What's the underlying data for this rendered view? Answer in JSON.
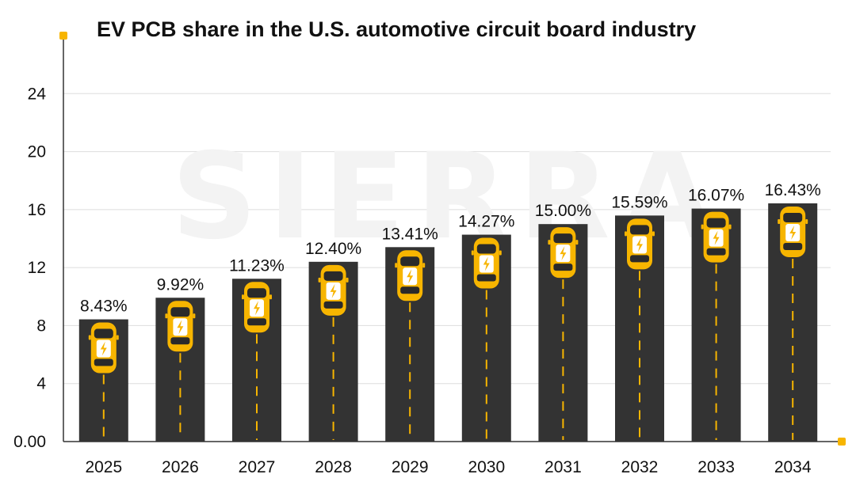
{
  "chart_data": {
    "type": "bar",
    "title": "EV PCB share in the U.S. automotive circuit board industry",
    "xlabel": "",
    "ylabel": "",
    "categories": [
      "2025",
      "2026",
      "2027",
      "2028",
      "2029",
      "2030",
      "2031",
      "2032",
      "2033",
      "2034"
    ],
    "values": [
      8.43,
      9.92,
      11.23,
      12.4,
      13.41,
      14.27,
      15.0,
      15.59,
      16.07,
      16.43
    ],
    "data_labels": [
      "8.43%",
      "9.92%",
      "11.23%",
      "12.40%",
      "13.41%",
      "14.27%",
      "15.00%",
      "15.59%",
      "16.07%",
      "16.43%"
    ],
    "yticks": [
      0,
      4,
      8,
      12,
      16,
      20,
      24
    ],
    "ytick_labels": [
      "0.00",
      "4",
      "8",
      "12",
      "16",
      "20",
      "24"
    ],
    "ylim": [
      0,
      28
    ],
    "grid": true,
    "legend": "none",
    "watermark": "SIERRA",
    "colors": {
      "bar": "#333333",
      "accent": "#f7b500",
      "grid": "#dddddd",
      "axis": "#333333"
    }
  }
}
